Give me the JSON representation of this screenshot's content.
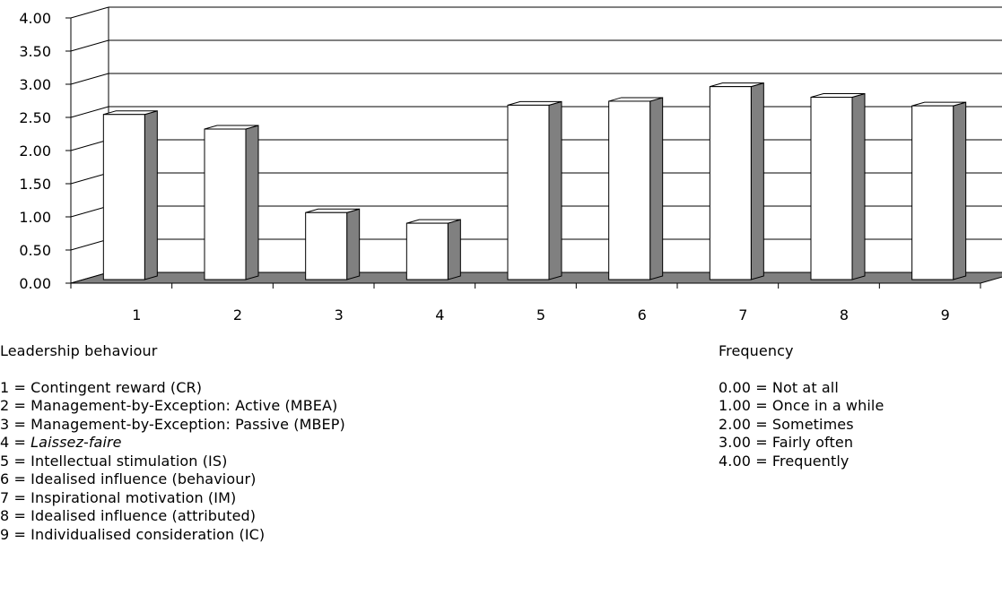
{
  "chart_data": {
    "type": "bar",
    "categories": [
      "1",
      "2",
      "3",
      "4",
      "5",
      "6",
      "7",
      "8",
      "9"
    ],
    "values": [
      2.49,
      2.27,
      1.01,
      0.85,
      2.63,
      2.69,
      2.91,
      2.75,
      2.62
    ],
    "ylim": [
      0,
      4
    ],
    "yticks": [
      "0.00",
      "0.50",
      "1.00",
      "1.50",
      "2.00",
      "2.50",
      "3.00",
      "3.50",
      "4.00"
    ],
    "grid": true,
    "bar_color": "#ffffff",
    "bar_side_color": "#808080",
    "floor_color": "#808080"
  },
  "legend_behaviour": {
    "heading": "Leadership behaviour",
    "items": [
      {
        "prefix": "1 = ",
        "text": "Contingent reward (CR)",
        "italic": false
      },
      {
        "prefix": "2 = ",
        "text": "Management-by-Exception: Active (MBEA)",
        "italic": false
      },
      {
        "prefix": "3 = ",
        "text": "Management-by-Exception: Passive (MBEP)",
        "italic": false
      },
      {
        "prefix": "4 = ",
        "text": "Laissez-faire",
        "italic": true
      },
      {
        "prefix": "5 = ",
        "text": "Intellectual stimulation (IS)",
        "italic": false
      },
      {
        "prefix": "6 = ",
        "text": "Idealised influence (behaviour)",
        "italic": false
      },
      {
        "prefix": "7 = ",
        "text": "Inspirational motivation (IM)",
        "italic": false
      },
      {
        "prefix": "8 = ",
        "text": "Idealised influence (attributed)",
        "italic": false
      },
      {
        "prefix": "9 = ",
        "text": "Individualised consideration (IC)",
        "italic": false
      }
    ]
  },
  "legend_frequency": {
    "heading": "Frequency",
    "items": [
      "0.00 = Not at all",
      "1.00 = Once in a while",
      "2.00 = Sometimes",
      "3.00 = Fairly often",
      "4.00 = Frequently"
    ]
  }
}
